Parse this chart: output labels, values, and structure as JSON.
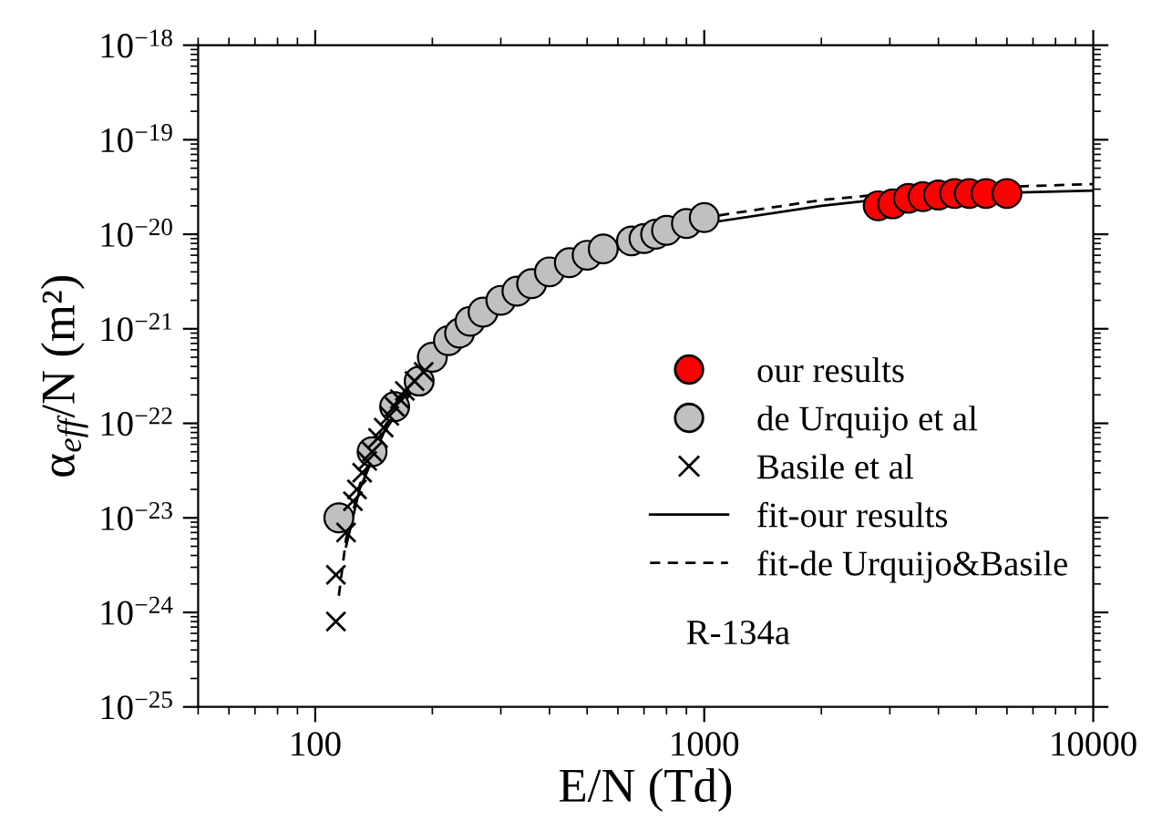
{
  "chart_data": {
    "type": "scatter",
    "xlabel": "E/N (Td)",
    "ylabel": "α$_{eff}$/N (m²)",
    "log": "xy",
    "grid": false,
    "legend": "bottom right",
    "xlim": [
      50,
      10000
    ],
    "ylim": [
      1e-25,
      1e-18
    ],
    "xticks": [
      100,
      1000,
      10000
    ],
    "yticks": [
      {
        "value": 1e-25,
        "label": "10$^{−25}$"
      },
      {
        "value": 1e-24,
        "label": "10$^{−24}$"
      },
      {
        "value": 1e-23,
        "label": "10$^{−23}$"
      },
      {
        "value": 1e-22,
        "label": "10$^{−22}$"
      },
      {
        "value": 1e-21,
        "label": "10$^{−21}$"
      },
      {
        "value": 1e-20,
        "label": "10$^{−20}$"
      },
      {
        "value": 1e-19,
        "label": "10$^{−19}$"
      },
      {
        "value": 1e-18,
        "label": "10$^{−18}$"
      }
    ],
    "annotations": [
      "R-134a"
    ],
    "series": [
      {
        "name": "our results",
        "marker": "circle",
        "color": "#ff0000",
        "x": [
          2800,
          3050,
          3350,
          3650,
          4000,
          4400,
          4800,
          5300,
          6000
        ],
        "values": [
          2e-20,
          2.1e-20,
          2.4e-20,
          2.5e-20,
          2.6e-20,
          2.7e-20,
          2.7e-20,
          2.7e-20,
          2.7e-20
        ]
      },
      {
        "name": "de Urquijo et al",
        "marker": "circle",
        "color": "#c0c0c0",
        "x": [
          115,
          140,
          160,
          185,
          200,
          220,
          235,
          250,
          270,
          300,
          330,
          360,
          400,
          450,
          500,
          550,
          650,
          700,
          750,
          800,
          900,
          1000
        ],
        "values": [
          1e-23,
          5e-23,
          1.5e-22,
          2.8e-22,
          5e-22,
          7.5e-22,
          9e-22,
          1.2e-21,
          1.5e-21,
          2e-21,
          2.5e-21,
          3e-21,
          4e-21,
          5e-21,
          6e-21,
          7e-21,
          8.5e-21,
          9e-21,
          1e-20,
          1.1e-20,
          1.3e-20,
          1.5e-20
        ]
      },
      {
        "name": "Basile et al",
        "marker": "cross",
        "color": "#000000",
        "x": [
          113,
          113,
          120,
          125,
          128,
          132,
          136,
          140,
          145,
          150,
          155,
          160,
          165,
          170,
          180,
          190
        ],
        "values": [
          8e-25,
          2.5e-24,
          7e-24,
          1.5e-23,
          2e-23,
          3e-23,
          4e-23,
          5e-23,
          7e-23,
          9e-23,
          1.2e-22,
          1.5e-22,
          1.8e-22,
          2.2e-22,
          2.8e-22,
          3.5e-22
        ]
      },
      {
        "name": "fit-our results",
        "type": "line",
        "marker": "none",
        "line_style": "solid",
        "color": "#000000",
        "x": [
          120,
          130,
          150,
          200,
          300,
          500,
          1000,
          2000,
          3000,
          5000,
          10000
        ],
        "values": [
          5e-24,
          2e-23,
          8e-23,
          4.5e-22,
          1.8e-21,
          5.5e-21,
          1.3e-20,
          2e-20,
          2.4e-20,
          2.7e-20,
          2.9e-20
        ]
      },
      {
        "name": "fit-de Urquijo&Basile",
        "type": "line",
        "marker": "none",
        "line_style": "dashed",
        "color": "#000000",
        "x": [
          115,
          120,
          130,
          150,
          200,
          300,
          500,
          1000,
          2000,
          3000,
          5000,
          10000
        ],
        "values": [
          1.5e-24,
          6e-24,
          2.2e-23,
          9e-23,
          5e-22,
          1.9e-21,
          6e-21,
          1.5e-20,
          2.3e-20,
          2.7e-20,
          3.1e-20,
          3.4e-20
        ]
      }
    ]
  }
}
